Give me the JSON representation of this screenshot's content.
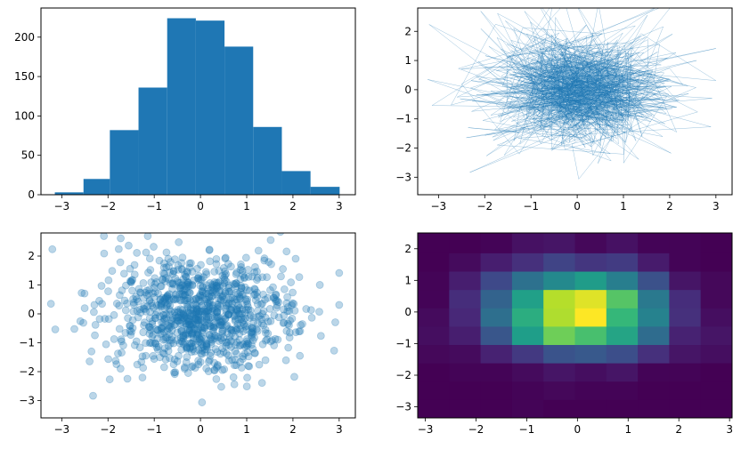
{
  "chart_data": [
    {
      "type": "bar",
      "subtype": "histogram",
      "color": "#1f77b4",
      "bin_edges": [
        -3.15,
        -2.53,
        -1.96,
        -1.34,
        -0.72,
        -0.1,
        0.52,
        1.14,
        1.76,
        2.38,
        3.01
      ],
      "values": [
        3,
        20,
        82,
        136,
        224,
        221,
        188,
        86,
        30,
        10
      ],
      "xlim": [
        -3.45,
        3.35
      ],
      "ylim": [
        0,
        237
      ],
      "xticks": [
        -3,
        -2,
        -1,
        0,
        1,
        2,
        3
      ],
      "yticks": [
        0,
        50,
        100,
        150,
        200
      ],
      "grid": false,
      "title": "",
      "xlabel": "",
      "ylabel": ""
    },
    {
      "type": "line",
      "color": "#1f77b4",
      "linewidth": 0.2,
      "points": 1000,
      "x_distribution": "normal, mean 0, sd 1",
      "y_distribution": "normal, mean 0, sd 1",
      "xlim": [
        -3.45,
        3.35
      ],
      "ylim": [
        -3.6,
        2.8
      ],
      "xticks": [
        -3,
        -2,
        -1,
        0,
        1,
        2,
        3
      ],
      "yticks": [
        -3,
        -2,
        -1,
        0,
        1,
        2
      ],
      "grid": false,
      "title": "",
      "xlabel": "",
      "ylabel": ""
    },
    {
      "type": "scatter",
      "color": "#1f77b4",
      "alpha": 0.3,
      "points": 1000,
      "x_distribution": "normal, mean 0, sd 1",
      "y_distribution": "normal, mean 0, sd 1",
      "xlim": [
        -3.45,
        3.35
      ],
      "ylim": [
        -3.6,
        2.8
      ],
      "xticks": [
        -3,
        -2,
        -1,
        0,
        1,
        2,
        3
      ],
      "yticks": [
        -3,
        -2,
        -1,
        0,
        1,
        2
      ],
      "grid": false,
      "title": "",
      "xlabel": "",
      "ylabel": ""
    },
    {
      "type": "heatmap",
      "colormap": "viridis",
      "x_edges": [
        -3.15,
        -2.53,
        -1.91,
        -1.29,
        -0.67,
        -0.05,
        0.57,
        1.19,
        1.81,
        2.43,
        3.05
      ],
      "y_edges": [
        -3.35,
        -2.77,
        -2.19,
        -1.61,
        -1.03,
        -0.45,
        0.13,
        0.71,
        1.29,
        1.87,
        2.5
      ],
      "counts": [
        [
          0,
          0,
          0,
          1,
          0,
          0,
          0,
          0,
          0,
          0
        ],
        [
          0,
          0,
          0,
          1,
          2,
          1,
          1,
          0,
          0,
          0
        ],
        [
          0,
          1,
          1,
          3,
          6,
          4,
          6,
          1,
          1,
          0
        ],
        [
          2,
          3,
          10,
          18,
          28,
          30,
          26,
          15,
          6,
          4
        ],
        [
          4,
          9,
          29,
          60,
          84,
          76,
          63,
          38,
          10,
          6
        ],
        [
          3,
          12,
          39,
          67,
          95,
          108,
          72,
          48,
          15,
          4
        ],
        [
          1,
          14,
          34,
          61,
          96,
          103,
          79,
          44,
          14,
          2
        ],
        [
          1,
          9,
          24,
          40,
          51,
          59,
          46,
          27,
          6,
          2
        ],
        [
          0,
          3,
          9,
          15,
          22,
          17,
          19,
          8,
          1,
          0
        ],
        [
          0,
          0,
          1,
          5,
          6,
          2,
          5,
          1,
          1,
          0
        ]
      ],
      "vmax": 108,
      "xlim": [
        -3.15,
        3.05
      ],
      "ylim": [
        -3.35,
        2.5
      ],
      "xticks": [
        -3,
        -2,
        -1,
        0,
        1,
        2,
        3
      ],
      "yticks": [
        -3,
        -2,
        -1,
        0,
        1,
        2
      ],
      "grid": false,
      "title": "",
      "xlabel": "",
      "ylabel": ""
    }
  ]
}
